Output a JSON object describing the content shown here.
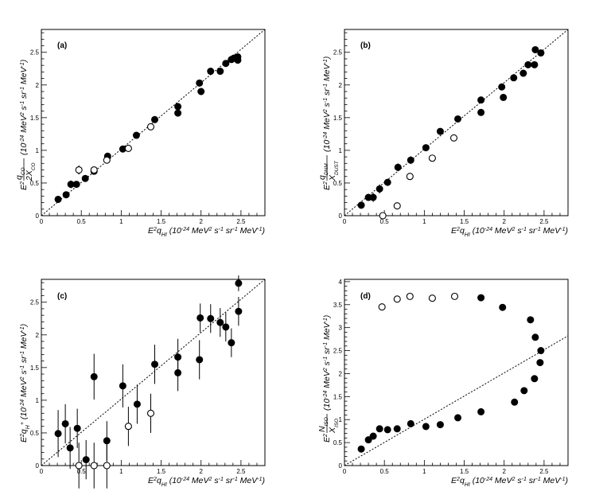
{
  "figure": {
    "background": "#ffffff",
    "ink": "#000000"
  },
  "chart_data": [
    {
      "type": "scatter",
      "panel": "(a)",
      "xlabel": "E²q_HI (10⁻²⁴ MeV² s⁻¹ sr⁻¹ MeV⁻¹)",
      "ylabel": "E² q_CO/2X_CO (10⁻²⁴ MeV² s⁻¹ sr⁻¹ MeV⁻¹)",
      "xlim": [
        0,
        2.8
      ],
      "ylim": [
        0,
        2.85
      ],
      "xticks": [
        "0",
        "0.5",
        "1",
        "1.5",
        "2",
        "2.5"
      ],
      "yticks": [
        "0",
        "0.5",
        "1",
        "1.5",
        "2",
        "2.5"
      ],
      "reference_line": "y = x",
      "series": [
        {
          "name": "filled",
          "marker": "filled",
          "x": [
            0.21,
            0.31,
            0.37,
            0.44,
            0.55,
            0.66,
            0.83,
            1.02,
            1.19,
            1.42,
            1.71,
            1.71,
            1.98,
            2.0,
            2.12,
            2.24,
            2.31,
            2.38,
            2.41,
            2.46,
            2.46
          ],
          "y": [
            0.25,
            0.32,
            0.48,
            0.48,
            0.57,
            0.68,
            0.91,
            1.02,
            1.23,
            1.47,
            1.57,
            1.67,
            2.03,
            1.9,
            2.21,
            2.21,
            2.33,
            2.39,
            2.41,
            2.43,
            2.38
          ],
          "yerr": [
            0.03,
            0.03,
            0.06,
            0.05,
            0.03,
            0.03,
            0.03,
            0.03,
            0.03,
            0.03,
            0.04,
            0.04,
            0.03,
            0.03,
            0.03,
            0.03,
            0.03,
            0.03,
            0.03,
            0.03,
            0.03
          ]
        },
        {
          "name": "open",
          "marker": "open",
          "x": [
            0.47,
            0.66,
            0.82,
            1.09,
            1.37
          ],
          "y": [
            0.7,
            0.7,
            0.85,
            1.03,
            1.36
          ],
          "yerr": [
            0.07,
            0.04,
            0.04,
            0.03,
            0.03
          ]
        }
      ]
    },
    {
      "type": "scatter",
      "panel": "(b)",
      "xlabel": "E²q_HI (10⁻²⁴ MeV² s⁻¹ sr⁻¹ MeV⁻¹)",
      "ylabel": "E² q_DNM/X_DUST (10⁻²⁴ MeV² s⁻¹ sr⁻¹ MeV⁻¹)",
      "xlim": [
        0,
        2.8
      ],
      "ylim": [
        0,
        2.85
      ],
      "xticks": [
        "0",
        "0.5",
        "1",
        "1.5",
        "2",
        "2.5"
      ],
      "yticks": [
        "0",
        "0.5",
        "1",
        "1.5",
        "2",
        "2.5"
      ],
      "reference_line": "y = x",
      "series": [
        {
          "name": "filled",
          "marker": "filled",
          "x": [
            0.21,
            0.3,
            0.36,
            0.44,
            0.54,
            0.67,
            0.83,
            1.02,
            1.2,
            1.42,
            1.71,
            1.71,
            1.97,
            1.99,
            2.12,
            2.24,
            2.3,
            2.38,
            2.39,
            2.46
          ],
          "y": [
            0.16,
            0.28,
            0.28,
            0.41,
            0.51,
            0.74,
            0.85,
            1.04,
            1.29,
            1.48,
            1.58,
            1.77,
            1.97,
            1.81,
            2.11,
            2.18,
            2.31,
            2.31,
            2.54,
            2.49
          ],
          "yerr": [
            0.03,
            0.05,
            0.07,
            0.07,
            0.05,
            0.06,
            0.06,
            0.03,
            0.03,
            0.03,
            0.04,
            0.04,
            0.03,
            0.03,
            0.03,
            0.03,
            0.03,
            0.03,
            0.03,
            0.03
          ]
        },
        {
          "name": "open",
          "marker": "open",
          "x": [
            0.48,
            0.66,
            0.82,
            1.1,
            1.37
          ],
          "y": [
            0.0,
            0.15,
            0.6,
            0.88,
            1.19
          ],
          "yerr": [
            0.04,
            0.03,
            0.03,
            0.03,
            0.03
          ]
        }
      ]
    },
    {
      "type": "scatter",
      "panel": "(c)",
      "xlabel": "E²q_HI (10⁻²⁴ MeV² s⁻¹ sr⁻¹ MeV⁻¹)",
      "ylabel": "E² q_H⁺ (10⁻²⁴ MeV² s⁻¹ sr⁻¹ MeV⁻¹)",
      "xlim": [
        0,
        2.8
      ],
      "ylim": [
        0,
        2.85
      ],
      "xticks": [
        "0",
        "0.5",
        "1",
        "1.5",
        "2",
        "2.5"
      ],
      "yticks": [
        "0",
        "0.5",
        "1",
        "1.5",
        "2",
        "2.5"
      ],
      "reference_line": "y = x",
      "series": [
        {
          "name": "filled",
          "marker": "filled",
          "x": [
            0.21,
            0.3,
            0.36,
            0.45,
            0.56,
            0.66,
            0.82,
            1.02,
            1.2,
            1.42,
            1.71,
            1.71,
            1.98,
            1.99,
            2.12,
            2.24,
            2.31,
            2.38,
            2.47,
            2.47
          ],
          "y": [
            0.49,
            0.64,
            0.27,
            0.57,
            0.09,
            1.36,
            0.38,
            1.22,
            0.94,
            1.55,
            1.42,
            1.66,
            1.62,
            2.26,
            2.25,
            2.19,
            2.12,
            1.88,
            2.36,
            2.79
          ],
          "yerr": [
            0.36,
            0.3,
            0.32,
            0.3,
            0.3,
            0.35,
            0.3,
            0.33,
            0.3,
            0.3,
            0.28,
            0.28,
            0.3,
            0.22,
            0.22,
            0.22,
            0.22,
            0.22,
            0.22,
            0.12
          ]
        },
        {
          "name": "open",
          "marker": "open",
          "x": [
            0.47,
            0.66,
            0.82,
            1.09,
            1.37
          ],
          "y": [
            0.0,
            0.0,
            0.0,
            0.6,
            0.8
          ],
          "yerr": [
            0.35,
            0.35,
            0.35,
            0.3,
            0.3
          ]
        }
      ]
    },
    {
      "type": "scatter",
      "panel": "(d)",
      "xlabel": "E²q_HI (10⁻²⁴ MeV² s⁻¹ sr⁻¹ MeV⁻¹)",
      "ylabel": "E² N_ISO/X_ISO (10⁻²⁴ MeV² s⁻¹ sr⁻¹ MeV⁻¹)",
      "xlim": [
        0,
        2.8
      ],
      "ylim": [
        0,
        4.05
      ],
      "xticks": [
        "0",
        "0.5",
        "1",
        "1.5",
        "2",
        "2.5"
      ],
      "yticks": [
        "0",
        "0.5",
        "1",
        "1.5",
        "2",
        "2.5",
        "3",
        "3.5",
        "4"
      ],
      "reference_line": "y = x",
      "series": [
        {
          "name": "filled",
          "marker": "filled",
          "x": [
            0.21,
            0.3,
            0.36,
            0.44,
            0.54,
            0.66,
            0.83,
            1.02,
            1.2,
            1.42,
            1.71,
            1.71,
            1.98,
            2.13,
            2.25,
            2.33,
            2.38,
            2.39,
            2.45,
            2.46
          ],
          "y": [
            0.36,
            0.56,
            0.64,
            0.8,
            0.78,
            0.8,
            0.91,
            0.85,
            0.89,
            1.04,
            1.17,
            3.65,
            3.44,
            1.38,
            1.63,
            3.17,
            1.89,
            2.79,
            2.24,
            2.5
          ],
          "yerr": [
            0,
            0,
            0,
            0,
            0,
            0,
            0,
            0,
            0,
            0,
            0,
            0,
            0,
            0,
            0,
            0,
            0,
            0,
            0,
            0
          ]
        },
        {
          "name": "open",
          "marker": "open",
          "x": [
            0.47,
            0.66,
            0.82,
            1.1,
            1.38
          ],
          "y": [
            3.45,
            3.62,
            3.68,
            3.64,
            3.68
          ],
          "yerr": [
            0,
            0,
            0,
            0,
            0
          ]
        }
      ]
    }
  ]
}
